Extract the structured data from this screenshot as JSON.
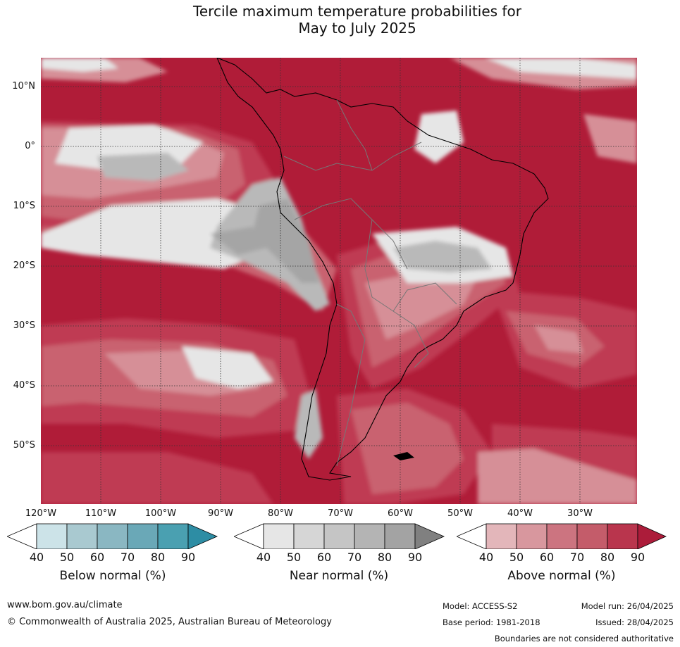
{
  "title_line1": "Tercile maximum temperature probabilities for",
  "title_line2": "May to July 2025",
  "map": {
    "lat_labels": [
      "10°N",
      "0°",
      "10°S",
      "20°S",
      "30°S",
      "40°S",
      "50°S"
    ],
    "lon_labels": [
      "120°W",
      "110°W",
      "100°W",
      "90°W",
      "80°W",
      "70°W",
      "60°W",
      "50°W",
      "40°W",
      "30°W"
    ],
    "colors": {
      "above_90": "#b01c38",
      "above_80": "#bf3a52",
      "above_70": "#c9626f",
      "above_60": "#d68f97",
      "above_50": "#e3b6ba",
      "near_40": "#e6e6e6",
      "near_50": "#d2d2d2",
      "near_60": "#b9b9b9",
      "near_70": "#a5a5a5"
    }
  },
  "legend": {
    "ticks": [
      "40",
      "50",
      "60",
      "70",
      "80",
      "90"
    ],
    "below": {
      "title": "Below normal (%)",
      "colors": [
        "#ffffff",
        "#cce3e8",
        "#a9c9d0",
        "#8ab7c2",
        "#6aa8b7",
        "#4aa0b1",
        "#2d8da4"
      ]
    },
    "near": {
      "title": "Near normal (%)",
      "colors": [
        "#ffffff",
        "#e6e6e6",
        "#d6d6d6",
        "#c5c5c5",
        "#b4b4b4",
        "#a3a3a3",
        "#808080"
      ]
    },
    "above": {
      "title": "Above normal (%)",
      "colors": [
        "#ffffff",
        "#e3b6ba",
        "#d8979e",
        "#cc7480",
        "#c45c6a",
        "#b9354d",
        "#ac1c3a"
      ]
    }
  },
  "footer": {
    "website": "www.bom.gov.au/climate",
    "copyright": "© Commonwealth of Australia 2025, Australian Bureau of Meteorology",
    "model": "Model: ACCESS-S2",
    "base_period": "Base period: 1981-2018",
    "model_run": "Model run: 26/04/2025",
    "issued": "Issued: 28/04/2025",
    "disclaimer": "Boundaries are not considered authoritative"
  }
}
